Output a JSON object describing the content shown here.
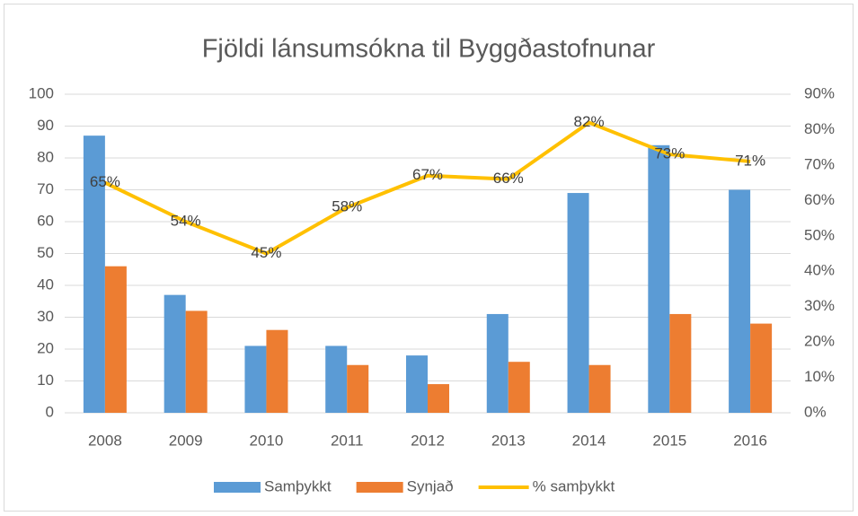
{
  "chart_data": {
    "type": "bar",
    "title": "Fjöldi lánsumsókna til Byggðastofnunar",
    "categories": [
      "2008",
      "2009",
      "2010",
      "2011",
      "2012",
      "2013",
      "2014",
      "2015",
      "2016"
    ],
    "series": [
      {
        "name": "Samþykkt",
        "color": "#5b9bd5",
        "values": [
          87,
          37,
          21,
          21,
          18,
          31,
          69,
          84,
          70
        ]
      },
      {
        "name": "Synjað",
        "color": "#ed7d31",
        "values": [
          46,
          32,
          26,
          15,
          9,
          16,
          15,
          31,
          28
        ]
      },
      {
        "name": "% samþykkt",
        "color": "#ffc000",
        "type": "line",
        "axis": "y2",
        "values": [
          65,
          54,
          45,
          58,
          67,
          66,
          82,
          73,
          71
        ],
        "value_labels": [
          "65%",
          "54%",
          "45%",
          "58%",
          "67%",
          "66%",
          "82%",
          "73%",
          "71%"
        ]
      }
    ],
    "ylim": [
      0,
      100
    ],
    "yticks": [
      0,
      10,
      20,
      30,
      40,
      50,
      60,
      70,
      80,
      90,
      100
    ],
    "y2lim": [
      0,
      90
    ],
    "y2ticks": [
      {
        "value": 0,
        "label": "0%"
      },
      {
        "value": 10,
        "label": "10%"
      },
      {
        "value": 20,
        "label": "20%"
      },
      {
        "value": 30,
        "label": "30%"
      },
      {
        "value": 40,
        "label": "40%"
      },
      {
        "value": 50,
        "label": "50%"
      },
      {
        "value": 60,
        "label": "60%"
      },
      {
        "value": 70,
        "label": "70%"
      },
      {
        "value": 80,
        "label": "80%"
      },
      {
        "value": 90,
        "label": "90%"
      }
    ],
    "grid": true,
    "legend": "bottom"
  }
}
